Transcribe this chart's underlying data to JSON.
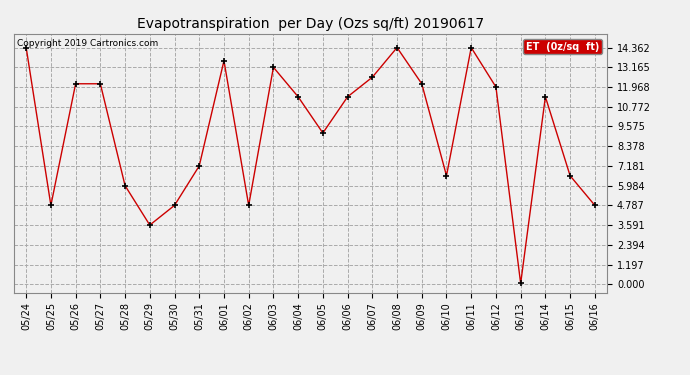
{
  "title": "Evapotranspiration  per Day (Ozs sq/ft) 20190617",
  "copyright": "Copyright 2019 Cartronics.com",
  "legend_label": "ET  (0z/sq  ft)",
  "legend_bg": "#cc0000",
  "legend_text_color": "#ffffff",
  "x_labels": [
    "05/24",
    "05/25",
    "05/26",
    "05/27",
    "05/28",
    "05/29",
    "05/30",
    "05/31",
    "06/01",
    "06/02",
    "06/03",
    "06/04",
    "06/05",
    "06/06",
    "06/07",
    "06/08",
    "06/09",
    "06/10",
    "06/11",
    "06/12",
    "06/13",
    "06/14",
    "06/15",
    "06/16"
  ],
  "y_values": [
    14.362,
    4.787,
    12.165,
    12.165,
    5.984,
    3.591,
    4.787,
    7.181,
    13.562,
    4.787,
    13.165,
    11.375,
    9.178,
    11.375,
    12.562,
    14.362,
    12.165,
    6.584,
    14.362,
    11.968,
    0.05,
    11.375,
    6.584,
    4.787
  ],
  "line_color": "#cc0000",
  "marker_color": "#000000",
  "bg_color": "#f0f0f0",
  "plot_bg_color": "#f0f0f0",
  "grid_color": "#aaaaaa",
  "yticks": [
    0.0,
    1.197,
    2.394,
    3.591,
    4.787,
    5.984,
    7.181,
    8.378,
    9.575,
    10.772,
    11.968,
    13.165,
    14.362
  ],
  "ylim": [
    -0.5,
    15.2
  ],
  "title_fontsize": 10,
  "copyright_fontsize": 6.5,
  "tick_fontsize": 7,
  "legend_fontsize": 7
}
